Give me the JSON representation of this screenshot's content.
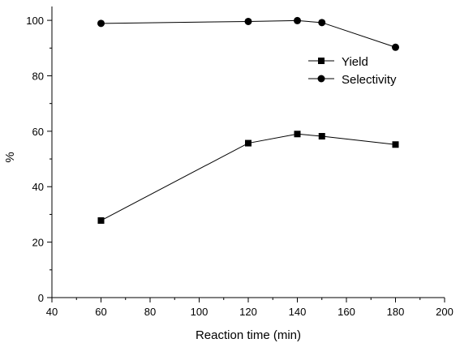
{
  "chart_data": {
    "type": "line",
    "title": "",
    "xlabel": "Reaction time (min)",
    "ylabel": "%",
    "xlim": [
      40,
      200
    ],
    "ylim": [
      0,
      105
    ],
    "xticks": [
      40,
      60,
      80,
      100,
      120,
      140,
      160,
      180,
      200
    ],
    "yticks": [
      0,
      20,
      40,
      60,
      80,
      100
    ],
    "grid": false,
    "legend_position": "top-right",
    "series": [
      {
        "name": "Yield",
        "marker": "square",
        "x": [
          60,
          120,
          140,
          150,
          180
        ],
        "y": [
          27.8,
          55.7,
          59.0,
          58.2,
          55.2
        ]
      },
      {
        "name": "Selectivity",
        "marker": "circle",
        "x": [
          60,
          120,
          140,
          150,
          180
        ],
        "y": [
          98.9,
          99.6,
          99.9,
          99.2,
          90.3
        ]
      }
    ]
  }
}
